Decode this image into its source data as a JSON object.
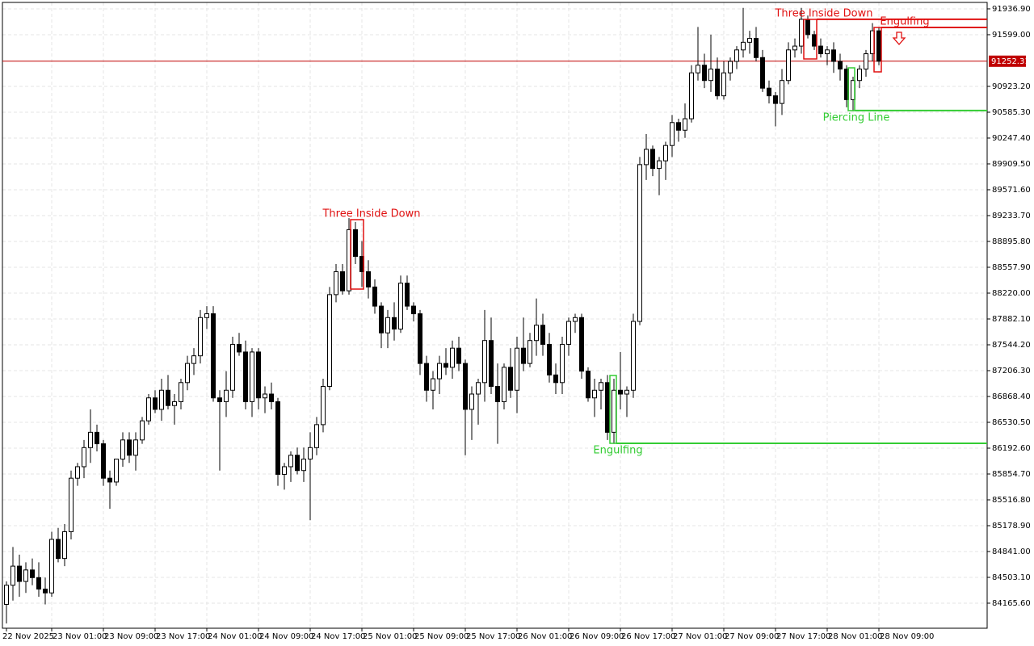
{
  "chart_data": {
    "type": "candlestick",
    "categories": [
      "22 Nov 2025",
      null,
      null,
      null,
      null,
      null,
      null,
      "23 Nov 01:00",
      null,
      null,
      null,
      null,
      null,
      null,
      null,
      "23 Nov 09:00",
      null,
      null,
      null,
      null,
      null,
      null,
      null,
      "23 Nov 17:00",
      null,
      null,
      null,
      null,
      null,
      null,
      null,
      "24 Nov 01:00",
      null,
      null,
      null,
      null,
      null,
      null,
      null,
      "24 Nov 09:00",
      null,
      null,
      null,
      null,
      null,
      null,
      null,
      "24 Nov 17:00",
      null,
      null,
      null,
      null,
      null,
      null,
      null,
      "25 Nov 01:00",
      null,
      null,
      null,
      null,
      null,
      null,
      null,
      "25 Nov 09:00",
      null,
      null,
      null,
      null,
      null,
      null,
      null,
      "25 Nov 17:00",
      null,
      null,
      null,
      null,
      null,
      null,
      null,
      "26 Nov 01:00",
      null,
      null,
      null,
      null,
      null,
      null,
      null,
      "26 Nov 09:00",
      null,
      null,
      null,
      null,
      null,
      null,
      null,
      "26 Nov 17:00",
      null,
      null,
      null,
      null,
      null,
      null,
      null,
      "27 Nov 01:00",
      null,
      null,
      null,
      null,
      null,
      null,
      null,
      "27 Nov 09:00",
      null,
      null,
      null,
      null,
      null,
      null,
      null,
      "27 Nov 17:00",
      null,
      null,
      null,
      null,
      null,
      null,
      null,
      "28 Nov 01:00",
      null,
      null,
      null,
      null,
      null,
      null,
      null,
      "28 Nov 09:00"
    ],
    "candles": [
      [
        84150,
        84450,
        83900,
        84400
      ],
      [
        84400,
        84900,
        84200,
        84650
      ],
      [
        84650,
        84800,
        84250,
        84450
      ],
      [
        84450,
        84700,
        84300,
        84600
      ],
      [
        84600,
        84750,
        84400,
        84500
      ],
      [
        84500,
        84700,
        84250,
        84350
      ],
      [
        84350,
        84500,
        84150,
        84300
      ],
      [
        84300,
        85100,
        84250,
        85000
      ],
      [
        85000,
        85150,
        84700,
        84750
      ],
      [
        84750,
        85200,
        84650,
        85100
      ],
      [
        85100,
        85900,
        85000,
        85800
      ],
      [
        85800,
        86000,
        85700,
        85950
      ],
      [
        85950,
        86300,
        85800,
        86200
      ],
      [
        86200,
        86700,
        86000,
        86400
      ],
      [
        86400,
        86500,
        86150,
        86250
      ],
      [
        86250,
        86300,
        85700,
        85800
      ],
      [
        85800,
        85900,
        85400,
        85750
      ],
      [
        85750,
        86000,
        85700,
        86050
      ],
      [
        86050,
        86400,
        85950,
        86300
      ],
      [
        86300,
        86400,
        86000,
        86100
      ],
      [
        86100,
        86400,
        85900,
        86300
      ],
      [
        86300,
        86600,
        86250,
        86550
      ],
      [
        86550,
        86900,
        86500,
        86850
      ],
      [
        86850,
        86950,
        86650,
        86700
      ],
      [
        86700,
        87100,
        86550,
        86950
      ],
      [
        86950,
        87150,
        86700,
        86750
      ],
      [
        86750,
        86900,
        86500,
        86800
      ],
      [
        86800,
        87100,
        86700,
        87050
      ],
      [
        87050,
        87400,
        86950,
        87300
      ],
      [
        87300,
        87500,
        87150,
        87400
      ],
      [
        87400,
        88000,
        87300,
        87900
      ],
      [
        87900,
        88050,
        87750,
        87950
      ],
      [
        87950,
        88050,
        86800,
        86850
      ],
      [
        86850,
        86950,
        85900,
        86800
      ],
      [
        86800,
        87200,
        86600,
        86950
      ],
      [
        86950,
        87650,
        86850,
        87550
      ],
      [
        87550,
        87700,
        87400,
        87450
      ],
      [
        87450,
        87600,
        86700,
        86800
      ],
      [
        86800,
        87500,
        86600,
        87450
      ],
      [
        87450,
        87500,
        86700,
        86850
      ],
      [
        86850,
        87000,
        86650,
        86900
      ],
      [
        86900,
        87050,
        86700,
        86800
      ],
      [
        86800,
        86850,
        85700,
        85850
      ],
      [
        85850,
        86000,
        85650,
        85950
      ],
      [
        85950,
        86150,
        85750,
        86100
      ],
      [
        86100,
        86200,
        85850,
        85900
      ],
      [
        85900,
        86200,
        85750,
        86050
      ],
      [
        86050,
        86400,
        85250,
        86200
      ],
      [
        86200,
        86600,
        86100,
        86500
      ],
      [
        86500,
        87100,
        86400,
        87000
      ],
      [
        87000,
        88300,
        86950,
        88200
      ],
      [
        88200,
        88600,
        88100,
        88500
      ],
      [
        88500,
        88600,
        88200,
        88250
      ],
      [
        88250,
        89200,
        88200,
        89050
      ],
      [
        89050,
        89150,
        88600,
        88700
      ],
      [
        88700,
        88900,
        88300,
        88500
      ],
      [
        88500,
        88650,
        88150,
        88300
      ],
      [
        88300,
        88400,
        87950,
        88050
      ],
      [
        88050,
        88100,
        87500,
        87700
      ],
      [
        87700,
        88000,
        87500,
        87900
      ],
      [
        87900,
        88100,
        87600,
        87750
      ],
      [
        87750,
        88450,
        87700,
        88350
      ],
      [
        88350,
        88450,
        88000,
        88050
      ],
      [
        88050,
        88100,
        87850,
        87950
      ],
      [
        87950,
        88000,
        87150,
        87300
      ],
      [
        87300,
        87400,
        86800,
        86950
      ],
      [
        86950,
        87200,
        86700,
        87100
      ],
      [
        87100,
        87400,
        86900,
        87300
      ],
      [
        87300,
        87500,
        87150,
        87250
      ],
      [
        87250,
        87600,
        87100,
        87500
      ],
      [
        87500,
        87650,
        87200,
        87300
      ],
      [
        87300,
        87350,
        86100,
        86700
      ],
      [
        86700,
        87000,
        86300,
        86900
      ],
      [
        86900,
        87100,
        86500,
        87050
      ],
      [
        87050,
        88000,
        86800,
        87600
      ],
      [
        87600,
        87900,
        86900,
        87000
      ],
      [
        87000,
        87300,
        86250,
        86800
      ],
      [
        86800,
        87300,
        86700,
        87250
      ],
      [
        87250,
        87500,
        86850,
        86950
      ],
      [
        86950,
        87650,
        86650,
        87500
      ],
      [
        87500,
        87900,
        87200,
        87300
      ],
      [
        87300,
        87700,
        87250,
        87600
      ],
      [
        87600,
        88150,
        87400,
        87800
      ],
      [
        87800,
        87950,
        87400,
        87550
      ],
      [
        87550,
        87700,
        87050,
        87150
      ],
      [
        87150,
        87300,
        86900,
        87050
      ],
      [
        87050,
        87650,
        86900,
        87550
      ],
      [
        87550,
        87900,
        87400,
        87850
      ],
      [
        87850,
        87950,
        87700,
        87900
      ],
      [
        87900,
        87950,
        87100,
        87200
      ],
      [
        87200,
        87250,
        86800,
        86850
      ],
      [
        86850,
        87100,
        86600,
        86950
      ],
      [
        86950,
        87100,
        86700,
        87050
      ],
      [
        87050,
        87150,
        86300,
        86400
      ],
      [
        86400,
        87100,
        86250,
        86950
      ],
      [
        86950,
        87450,
        86700,
        86900
      ],
      [
        86900,
        87000,
        86600,
        86950
      ],
      [
        86950,
        87950,
        86850,
        87850
      ],
      [
        87850,
        90000,
        87800,
        89900
      ],
      [
        89900,
        90300,
        89700,
        90100
      ],
      [
        90100,
        90150,
        89750,
        89850
      ],
      [
        89850,
        90000,
        89500,
        89950
      ],
      [
        89950,
        90200,
        89700,
        90150
      ],
      [
        90150,
        90550,
        90000,
        90450
      ],
      [
        90450,
        90500,
        90200,
        90350
      ],
      [
        90350,
        90700,
        90250,
        90500
      ],
      [
        90500,
        91200,
        90450,
        91100
      ],
      [
        91100,
        91700,
        91000,
        91200
      ],
      [
        91200,
        91350,
        90900,
        91000
      ],
      [
        91000,
        91600,
        90850,
        91150
      ],
      [
        91150,
        91300,
        90750,
        90800
      ],
      [
        90800,
        91250,
        90750,
        91100
      ],
      [
        91100,
        91300,
        91000,
        91250
      ],
      [
        91250,
        91450,
        91150,
        91400
      ],
      [
        91400,
        91950,
        91300,
        91500
      ],
      [
        91500,
        91650,
        91350,
        91550
      ],
      [
        91550,
        91700,
        91250,
        91300
      ],
      [
        91300,
        91400,
        90850,
        90900
      ],
      [
        90900,
        91000,
        90700,
        90800
      ],
      [
        90800,
        90850,
        90400,
        90700
      ],
      [
        90700,
        91150,
        90550,
        91000
      ],
      [
        91000,
        91500,
        90950,
        91400
      ],
      [
        91400,
        91550,
        91300,
        91450
      ],
      [
        91450,
        91950,
        91350,
        91800
      ],
      [
        91800,
        91850,
        91550,
        91600
      ],
      [
        91600,
        91650,
        91400,
        91450
      ],
      [
        91450,
        91550,
        91300,
        91350
      ],
      [
        91350,
        91450,
        91200,
        91400
      ],
      [
        91400,
        91500,
        91100,
        91250
      ],
      [
        91250,
        91350,
        91000,
        91150
      ],
      [
        91150,
        91200,
        90650,
        90750
      ],
      [
        90750,
        91050,
        90600,
        91000
      ],
      [
        91000,
        91200,
        90900,
        91150
      ],
      [
        91150,
        91400,
        91050,
        91350
      ],
      [
        91350,
        91750,
        91250,
        91650
      ],
      [
        91650,
        91700,
        91200,
        91252.31
      ]
    ],
    "ylim": [
      83838,
      92021
    ],
    "yticks": [
      {
        "value": 91936.9,
        "label": "91936.90"
      },
      {
        "value": 91599,
        "label": "91599.00"
      },
      {
        "value": 90923.2,
        "label": "90923.20"
      },
      {
        "value": 90585.3,
        "label": "90585.30"
      },
      {
        "value": 90247.4,
        "label": "90247.40"
      },
      {
        "value": 89909.5,
        "label": "89909.50"
      },
      {
        "value": 89571.6,
        "label": "89571.60"
      },
      {
        "value": 89233.7,
        "label": "89233.70"
      },
      {
        "value": 88895.8,
        "label": "88895.80"
      },
      {
        "value": 88557.9,
        "label": "88557.90"
      },
      {
        "value": 88220,
        "label": "88220.00"
      },
      {
        "value": 87882.1,
        "label": "87882.10"
      },
      {
        "value": 87544.2,
        "label": "87544.20"
      },
      {
        "value": 87206.3,
        "label": "87206.30"
      },
      {
        "value": 86868.4,
        "label": "86868.40"
      },
      {
        "value": 86530.5,
        "label": "86530.50"
      },
      {
        "value": 86192.6,
        "label": "86192.60"
      },
      {
        "value": 85854.7,
        "label": "85854.70"
      },
      {
        "value": 85516.8,
        "label": "85516.80"
      },
      {
        "value": 85178.9,
        "label": "85178.90"
      },
      {
        "value": 84841,
        "label": "84841.00"
      },
      {
        "value": 84503.1,
        "label": "84503.10"
      },
      {
        "value": 84165.6,
        "label": "84165.60"
      }
    ],
    "grid": true,
    "bull_color": "#ffffff",
    "bear_color": "#000000",
    "last_price": 91252.31,
    "last_price_color": "#c00000",
    "annotations": [
      {
        "text": "Three Inside Down",
        "color": "#e01010"
      },
      {
        "text": "Engulfing",
        "color": "#33cc33",
        "level": 86256
      },
      {
        "text": "Three Inside Down",
        "color": "#e01010",
        "level": 91800
      },
      {
        "text": "Engulfing",
        "color": "#e01010",
        "level": 91694
      },
      {
        "text": "Piercing Line",
        "color": "#33cc33",
        "level": 90607
      }
    ]
  }
}
